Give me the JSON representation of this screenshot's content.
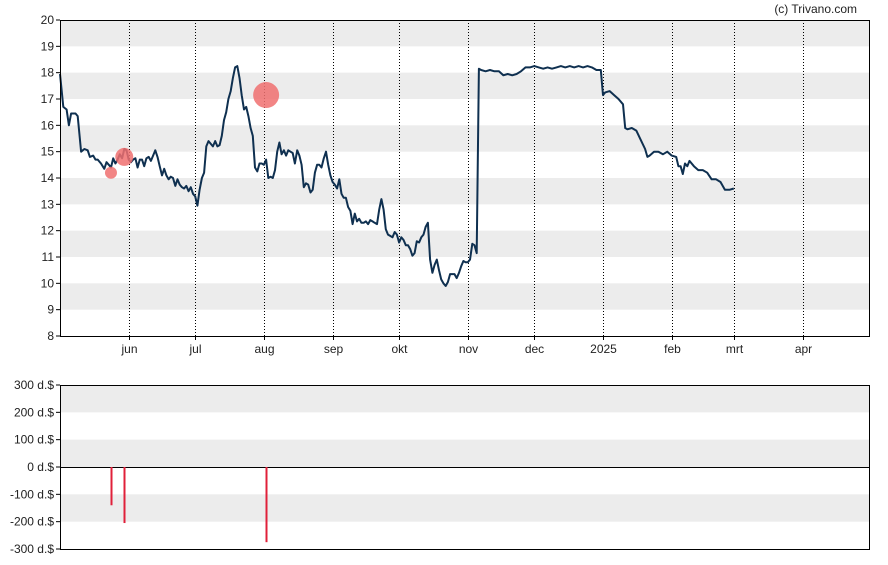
{
  "watermark": "(c) Trivano.com",
  "colors": {
    "band": "#ececec",
    "price_line": "#0f3050",
    "marker": "#f07070",
    "bar": "#e0203a",
    "axis": "#000000",
    "grid_dot": "#000000"
  },
  "chart_data": [
    {
      "type": "line",
      "y_axis": {
        "min": 8,
        "max": 20,
        "ticks": [
          "8",
          "9",
          "10",
          "11",
          "12",
          "13",
          "14",
          "15",
          "16",
          "17",
          "18",
          "19",
          "20"
        ]
      },
      "x_axis": {
        "domain": [
          0,
          365
        ],
        "ticks": [
          {
            "label": "jun",
            "x": 31
          },
          {
            "label": "jul",
            "x": 61
          },
          {
            "label": "aug",
            "x": 92
          },
          {
            "label": "sep",
            "x": 123
          },
          {
            "label": "okt",
            "x": 153
          },
          {
            "label": "nov",
            "x": 184
          },
          {
            "label": "dec",
            "x": 214
          },
          {
            "label": "2025",
            "x": 245
          },
          {
            "label": "feb",
            "x": 276
          },
          {
            "label": "mrt",
            "x": 304
          },
          {
            "label": "apr",
            "x": 335
          }
        ]
      },
      "series": [
        {
          "points": [
            [
              0,
              17.95
            ],
            [
              1.5,
              16.7
            ],
            [
              3,
              16.6
            ],
            [
              4,
              16.0
            ],
            [
              5,
              16.45
            ],
            [
              7,
              16.45
            ],
            [
              8,
              16.35
            ],
            [
              9.5,
              15.0
            ],
            [
              11,
              15.1
            ],
            [
              12.5,
              15.05
            ],
            [
              13.5,
              14.8
            ],
            [
              15,
              14.85
            ],
            [
              16,
              14.7
            ],
            [
              17,
              14.7
            ],
            [
              18.5,
              14.55
            ],
            [
              20,
              14.35
            ],
            [
              21,
              14.6
            ],
            [
              22,
              14.5
            ],
            [
              23,
              14.4
            ],
            [
              24,
              14.75
            ],
            [
              25,
              14.55
            ],
            [
              26,
              14.7
            ],
            [
              27,
              14.9
            ],
            [
              28,
              14.75
            ],
            [
              29,
              15.1
            ],
            [
              30,
              15.05
            ],
            [
              31,
              14.7
            ],
            [
              32,
              14.6
            ],
            [
              33,
              14.7
            ],
            [
              34,
              14.75
            ],
            [
              35,
              14.4
            ],
            [
              36,
              14.7
            ],
            [
              37,
              14.7
            ],
            [
              38,
              14.45
            ],
            [
              39,
              14.75
            ],
            [
              40,
              14.8
            ],
            [
              41,
              14.65
            ],
            [
              42,
              14.85
            ],
            [
              43,
              15.05
            ],
            [
              44,
              14.8
            ],
            [
              45,
              14.45
            ],
            [
              46,
              14.1
            ],
            [
              47,
              14.35
            ],
            [
              48,
              14.1
            ],
            [
              49,
              13.95
            ],
            [
              50,
              14.05
            ],
            [
              51,
              14.0
            ],
            [
              52,
              13.7
            ],
            [
              53,
              13.95
            ],
            [
              54,
              13.75
            ],
            [
              55,
              13.65
            ],
            [
              56,
              13.6
            ],
            [
              57,
              13.7
            ],
            [
              58,
              13.5
            ],
            [
              59,
              13.65
            ],
            [
              60,
              13.4
            ],
            [
              61,
              13.3
            ],
            [
              62,
              12.95
            ],
            [
              63,
              13.55
            ],
            [
              64,
              14.0
            ],
            [
              65,
              14.2
            ],
            [
              66,
              15.2
            ],
            [
              67,
              15.4
            ],
            [
              68,
              15.3
            ],
            [
              69,
              15.2
            ],
            [
              70,
              15.4
            ],
            [
              71,
              15.2
            ],
            [
              72,
              15.25
            ],
            [
              73,
              15.6
            ],
            [
              74,
              16.2
            ],
            [
              75,
              16.5
            ],
            [
              76,
              17.0
            ],
            [
              77,
              17.3
            ],
            [
              78,
              17.8
            ],
            [
              79,
              18.2
            ],
            [
              80,
              18.25
            ],
            [
              81,
              17.8
            ],
            [
              82,
              17.15
            ],
            [
              83,
              16.6
            ],
            [
              84,
              16.7
            ],
            [
              85,
              16.35
            ],
            [
              86,
              15.9
            ],
            [
              87,
              15.6
            ],
            [
              88,
              14.4
            ],
            [
              89,
              14.25
            ],
            [
              90,
              14.55
            ],
            [
              91,
              14.55
            ],
            [
              92,
              14.5
            ],
            [
              93,
              14.7
            ],
            [
              94,
              14.0
            ],
            [
              95,
              14.05
            ],
            [
              96,
              14.0
            ],
            [
              97,
              14.3
            ],
            [
              98,
              15.0
            ],
            [
              99,
              15.35
            ],
            [
              100,
              14.9
            ],
            [
              101,
              15.05
            ],
            [
              102,
              14.85
            ],
            [
              103,
              15.05
            ],
            [
              104,
              15.0
            ],
            [
              105,
              14.95
            ],
            [
              106,
              14.55
            ],
            [
              107,
              15.05
            ],
            [
              108,
              14.85
            ],
            [
              109,
              14.5
            ],
            [
              110,
              13.65
            ],
            [
              111,
              13.8
            ],
            [
              112,
              13.75
            ],
            [
              113,
              13.45
            ],
            [
              114,
              13.55
            ],
            [
              115,
              14.2
            ],
            [
              116,
              14.5
            ],
            [
              117,
              14.5
            ],
            [
              118,
              14.4
            ],
            [
              119,
              14.75
            ],
            [
              120,
              15.0
            ],
            [
              121,
              14.5
            ],
            [
              122,
              14.1
            ],
            [
              123,
              13.85
            ],
            [
              124,
              13.75
            ],
            [
              125,
              13.6
            ],
            [
              126,
              13.95
            ],
            [
              127,
              13.4
            ],
            [
              128,
              13.25
            ],
            [
              129,
              13.25
            ],
            [
              130,
              12.9
            ],
            [
              131,
              12.75
            ],
            [
              132,
              12.25
            ],
            [
              133,
              12.65
            ],
            [
              134,
              12.35
            ],
            [
              135,
              12.45
            ],
            [
              136,
              12.3
            ],
            [
              137,
              12.3
            ],
            [
              138,
              12.35
            ],
            [
              139,
              12.25
            ],
            [
              140,
              12.4
            ],
            [
              141,
              12.35
            ],
            [
              142,
              12.3
            ],
            [
              143,
              12.25
            ],
            [
              144,
              12.8
            ],
            [
              145,
              13.2
            ],
            [
              146,
              12.8
            ],
            [
              147,
              12.05
            ],
            [
              148,
              11.85
            ],
            [
              149,
              11.8
            ],
            [
              150,
              11.75
            ],
            [
              151,
              11.95
            ],
            [
              152,
              11.85
            ],
            [
              153,
              11.55
            ],
            [
              154,
              11.75
            ],
            [
              155,
              11.65
            ],
            [
              156,
              11.45
            ],
            [
              157,
              11.45
            ],
            [
              158,
              11.3
            ],
            [
              159,
              11.05
            ],
            [
              160,
              11.15
            ],
            [
              161,
              11.6
            ],
            [
              162,
              11.55
            ],
            [
              163,
              11.75
            ],
            [
              164,
              11.85
            ],
            [
              165,
              12.15
            ],
            [
              166,
              12.3
            ],
            [
              167,
              10.9
            ],
            [
              168,
              10.4
            ],
            [
              169,
              10.7
            ],
            [
              170,
              10.9
            ],
            [
              171,
              10.5
            ],
            [
              172,
              10.15
            ],
            [
              173,
              10.0
            ],
            [
              174,
              9.9
            ],
            [
              175,
              10.05
            ],
            [
              176,
              10.35
            ],
            [
              177,
              10.35
            ],
            [
              178,
              10.35
            ],
            [
              179,
              10.2
            ],
            [
              180,
              10.4
            ],
            [
              181,
              10.65
            ],
            [
              182,
              10.85
            ],
            [
              183,
              10.8
            ],
            [
              184,
              10.8
            ],
            [
              185,
              10.9
            ],
            [
              186,
              11.5
            ],
            [
              187,
              11.45
            ],
            [
              188,
              11.15
            ],
            [
              189,
              18.15
            ],
            [
              190,
              18.1
            ],
            [
              192,
              18.05
            ],
            [
              194,
              18.1
            ],
            [
              196,
              18.05
            ],
            [
              198,
              18.05
            ],
            [
              200,
              17.9
            ],
            [
              202,
              17.95
            ],
            [
              204,
              17.9
            ],
            [
              206,
              17.95
            ],
            [
              208,
              18.05
            ],
            [
              210,
              18.2
            ],
            [
              212,
              18.2
            ],
            [
              214,
              18.25
            ],
            [
              216,
              18.2
            ],
            [
              218,
              18.15
            ],
            [
              220,
              18.2
            ],
            [
              222,
              18.15
            ],
            [
              224,
              18.2
            ],
            [
              226,
              18.25
            ],
            [
              228,
              18.2
            ],
            [
              230,
              18.25
            ],
            [
              232,
              18.2
            ],
            [
              234,
              18.25
            ],
            [
              236,
              18.2
            ],
            [
              238,
              18.25
            ],
            [
              240,
              18.2
            ],
            [
              242,
              18.1
            ],
            [
              244,
              18.1
            ],
            [
              245,
              17.15
            ],
            [
              246,
              17.25
            ],
            [
              248,
              17.3
            ],
            [
              250,
              17.15
            ],
            [
              252,
              17.0
            ],
            [
              254,
              16.8
            ],
            [
              255,
              15.9
            ],
            [
              256,
              15.85
            ],
            [
              258,
              15.9
            ],
            [
              260,
              15.8
            ],
            [
              262,
              15.45
            ],
            [
              264,
              15.1
            ],
            [
              265,
              14.8
            ],
            [
              266,
              14.85
            ],
            [
              268,
              15.0
            ],
            [
              270,
              15.0
            ],
            [
              272,
              14.9
            ],
            [
              274,
              15.0
            ],
            [
              276,
              14.85
            ],
            [
              278,
              14.8
            ],
            [
              279,
              14.45
            ],
            [
              280,
              14.45
            ],
            [
              281,
              14.15
            ],
            [
              282,
              14.55
            ],
            [
              283,
              14.45
            ],
            [
              284,
              14.65
            ],
            [
              286,
              14.45
            ],
            [
              288,
              14.3
            ],
            [
              290,
              14.3
            ],
            [
              292,
              14.2
            ],
            [
              294,
              13.95
            ],
            [
              296,
              13.95
            ],
            [
              298,
              13.85
            ],
            [
              300,
              13.55
            ],
            [
              302,
              13.55
            ],
            [
              304,
              13.6
            ]
          ]
        }
      ],
      "markers": [
        {
          "x": 23,
          "y": 14.2,
          "size": "small"
        },
        {
          "x": 29,
          "y": 14.8,
          "size": "medium"
        },
        {
          "x": 93,
          "y": 17.15,
          "size": "large"
        }
      ]
    },
    {
      "type": "bar",
      "y_axis": {
        "min": -300,
        "max": 300,
        "ticks": [
          "300 d.$",
          "200 d.$",
          "100 d.$",
          "0 d.$",
          "-100 d.$",
          "-200 d.$",
          "-300 d.$"
        ]
      },
      "bars": [
        {
          "x": 23,
          "value": -140
        },
        {
          "x": 29,
          "value": -205
        },
        {
          "x": 93,
          "value": -275
        }
      ]
    }
  ]
}
